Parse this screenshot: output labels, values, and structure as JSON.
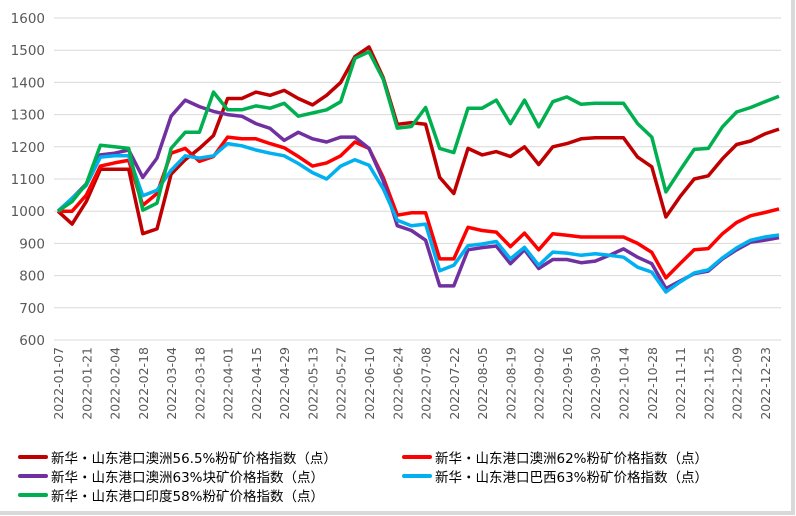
{
  "chart_data": {
    "type": "line",
    "title": "",
    "xlabel": "",
    "ylabel": "",
    "ylim": [
      600,
      1600
    ],
    "yticks": [
      600,
      700,
      800,
      900,
      1000,
      1100,
      1200,
      1300,
      1400,
      1500,
      1600
    ],
    "grid": true,
    "legend_position": "bottom",
    "x": [
      "2022-01-07",
      "2022-01-14",
      "2022-01-21",
      "2022-01-28",
      "2022-02-04",
      "2022-02-11",
      "2022-02-18",
      "2022-02-25",
      "2022-03-04",
      "2022-03-11",
      "2022-03-18",
      "2022-03-25",
      "2022-04-01",
      "2022-04-08",
      "2022-04-15",
      "2022-04-22",
      "2022-04-29",
      "2022-05-06",
      "2022-05-13",
      "2022-05-20",
      "2022-05-27",
      "2022-06-03",
      "2022-06-10",
      "2022-06-17",
      "2022-06-24",
      "2022-07-01",
      "2022-07-08",
      "2022-07-15",
      "2022-07-22",
      "2022-07-29",
      "2022-08-05",
      "2022-08-12",
      "2022-08-19",
      "2022-08-26",
      "2022-09-02",
      "2022-09-09",
      "2022-09-16",
      "2022-09-23",
      "2022-09-30",
      "2022-10-07",
      "2022-10-14",
      "2022-10-21",
      "2022-10-28",
      "2022-11-04",
      "2022-11-11",
      "2022-11-18",
      "2022-11-25",
      "2022-12-02",
      "2022-12-09",
      "2022-12-16",
      "2022-12-23",
      "2022-12-30"
    ],
    "xtick_labels": [
      "2022-01-07",
      "2022-01-21",
      "2022-02-04",
      "2022-02-18",
      "2022-03-04",
      "2022-03-18",
      "2022-04-01",
      "2022-04-15",
      "2022-04-29",
      "2022-05-13",
      "2022-05-27",
      "2022-06-10",
      "2022-06-24",
      "2022-07-08",
      "2022-07-22",
      "2022-08-05",
      "2022-08-19",
      "2022-09-02",
      "2022-09-16",
      "2022-09-30",
      "2022-10-14",
      "2022-10-28",
      "2022-11-11",
      "2022-11-25",
      "2022-12-09",
      "2022-12-23"
    ],
    "series": [
      {
        "name": "新华・山东港口澳洲56.5%粉矿价格指数（点）",
        "color": "#C00000",
        "values": [
          1000,
          960,
          1030,
          1130,
          1130,
          1130,
          930,
          945,
          1115,
          1160,
          1195,
          1235,
          1350,
          1350,
          1370,
          1360,
          1375,
          1350,
          1330,
          1360,
          1400,
          1480,
          1510,
          1415,
          1270,
          1275,
          1270,
          1105,
          1055,
          1195,
          1175,
          1185,
          1170,
          1200,
          1145,
          1200,
          1210,
          1225,
          1228,
          1228,
          1228,
          1168,
          1138,
          982,
          1045,
          1100,
          1110,
          1163,
          1207,
          1218,
          1240,
          1255
        ]
      },
      {
        "name": "新华・山东港口澳洲62%粉矿价格指数（点）",
        "color": "#FF0000",
        "values": [
          1000,
          1000,
          1050,
          1140,
          1150,
          1158,
          1018,
          1055,
          1180,
          1195,
          1155,
          1170,
          1230,
          1225,
          1225,
          1210,
          1197,
          1170,
          1140,
          1150,
          1172,
          1215,
          1195,
          1105,
          988,
          995,
          995,
          852,
          852,
          950,
          940,
          935,
          890,
          932,
          880,
          930,
          925,
          920,
          920,
          920,
          920,
          900,
          872,
          793,
          837,
          880,
          884,
          930,
          965,
          986,
          996,
          1007
        ]
      },
      {
        "name": "新华・山东港口澳洲63%块矿价格指数（点）",
        "color": "#7030A0",
        "values": [
          1000,
          1040,
          1085,
          1175,
          1180,
          1190,
          1105,
          1165,
          1295,
          1345,
          1325,
          1310,
          1300,
          1295,
          1272,
          1257,
          1220,
          1245,
          1225,
          1215,
          1230,
          1230,
          1195,
          1095,
          955,
          940,
          910,
          768,
          768,
          880,
          887,
          892,
          837,
          880,
          822,
          850,
          850,
          840,
          845,
          863,
          883,
          857,
          837,
          760,
          783,
          806,
          814,
          852,
          880,
          904,
          910,
          918
        ]
      },
      {
        "name": "新华・山东港口巴西63%粉矿价格指数（点）",
        "color": "#00B0F0",
        "values": [
          1000,
          1040,
          1080,
          1168,
          1172,
          1172,
          1048,
          1065,
          1127,
          1172,
          1165,
          1172,
          1210,
          1203,
          1190,
          1180,
          1172,
          1148,
          1120,
          1100,
          1140,
          1160,
          1143,
          1070,
          972,
          955,
          960,
          815,
          832,
          893,
          898,
          906,
          852,
          888,
          832,
          873,
          870,
          863,
          868,
          863,
          857,
          826,
          811,
          749,
          780,
          808,
          818,
          855,
          886,
          910,
          920,
          926
        ]
      },
      {
        "name": "新华・山东港口印度58%粉矿价格指数（点）",
        "color": "#00B050",
        "values": [
          1000,
          1030,
          1085,
          1205,
          1200,
          1195,
          1003,
          1025,
          1195,
          1245,
          1245,
          1370,
          1315,
          1315,
          1327,
          1320,
          1335,
          1295,
          1305,
          1315,
          1340,
          1475,
          1495,
          1410,
          1258,
          1263,
          1322,
          1195,
          1182,
          1320,
          1320,
          1345,
          1272,
          1345,
          1262,
          1340,
          1355,
          1332,
          1335,
          1335,
          1335,
          1272,
          1230,
          1060,
          1127,
          1192,
          1195,
          1262,
          1308,
          1322,
          1340,
          1357
        ]
      }
    ]
  }
}
